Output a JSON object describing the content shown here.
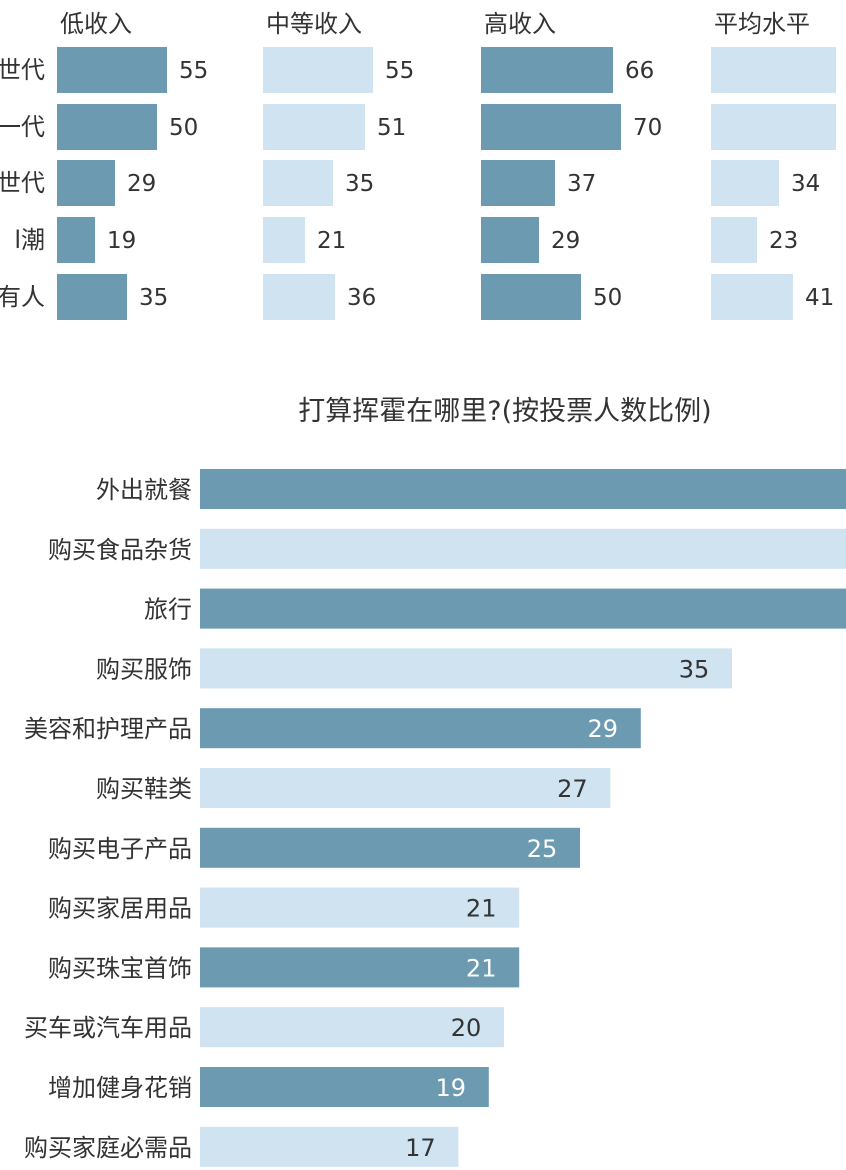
{
  "chart_data": [
    {
      "type": "bar",
      "orientation": "horizontal",
      "categories": [
        "世代",
        "一代",
        "世代",
        "l潮",
        "有人"
      ],
      "series": [
        {
          "name": "低收入",
          "values": [
            55,
            50,
            29,
            19,
            35
          ]
        },
        {
          "name": "中等收入",
          "values": [
            55,
            51,
            35,
            21,
            36
          ]
        },
        {
          "name": "高收入",
          "values": [
            66,
            70,
            37,
            29,
            50
          ]
        },
        {
          "name": "平均水平",
          "values": [
            null,
            null,
            34,
            23,
            41
          ]
        }
      ],
      "colors": {
        "dark": "#6b9ab1",
        "light": "#cfe3f1"
      }
    },
    {
      "type": "bar",
      "orientation": "horizontal",
      "title": "打算挥霍在哪里?(按投票人数比例)",
      "categories": [
        "外出就餐",
        "购买食品杂货",
        "旅行",
        "购买服饰",
        "美容和护理产品",
        "购买鞋类",
        "购买电子产品",
        "购买家居用品",
        "购买珠宝首饰",
        "买车或汽车用品",
        "增加健身花销",
        "购买家庭必需品"
      ],
      "values": [
        null,
        null,
        null,
        35,
        29,
        27,
        25,
        21,
        21,
        20,
        19,
        17
      ],
      "colors": {
        "dark": "#6b9ab1",
        "light": "#cfe3f1"
      }
    }
  ]
}
